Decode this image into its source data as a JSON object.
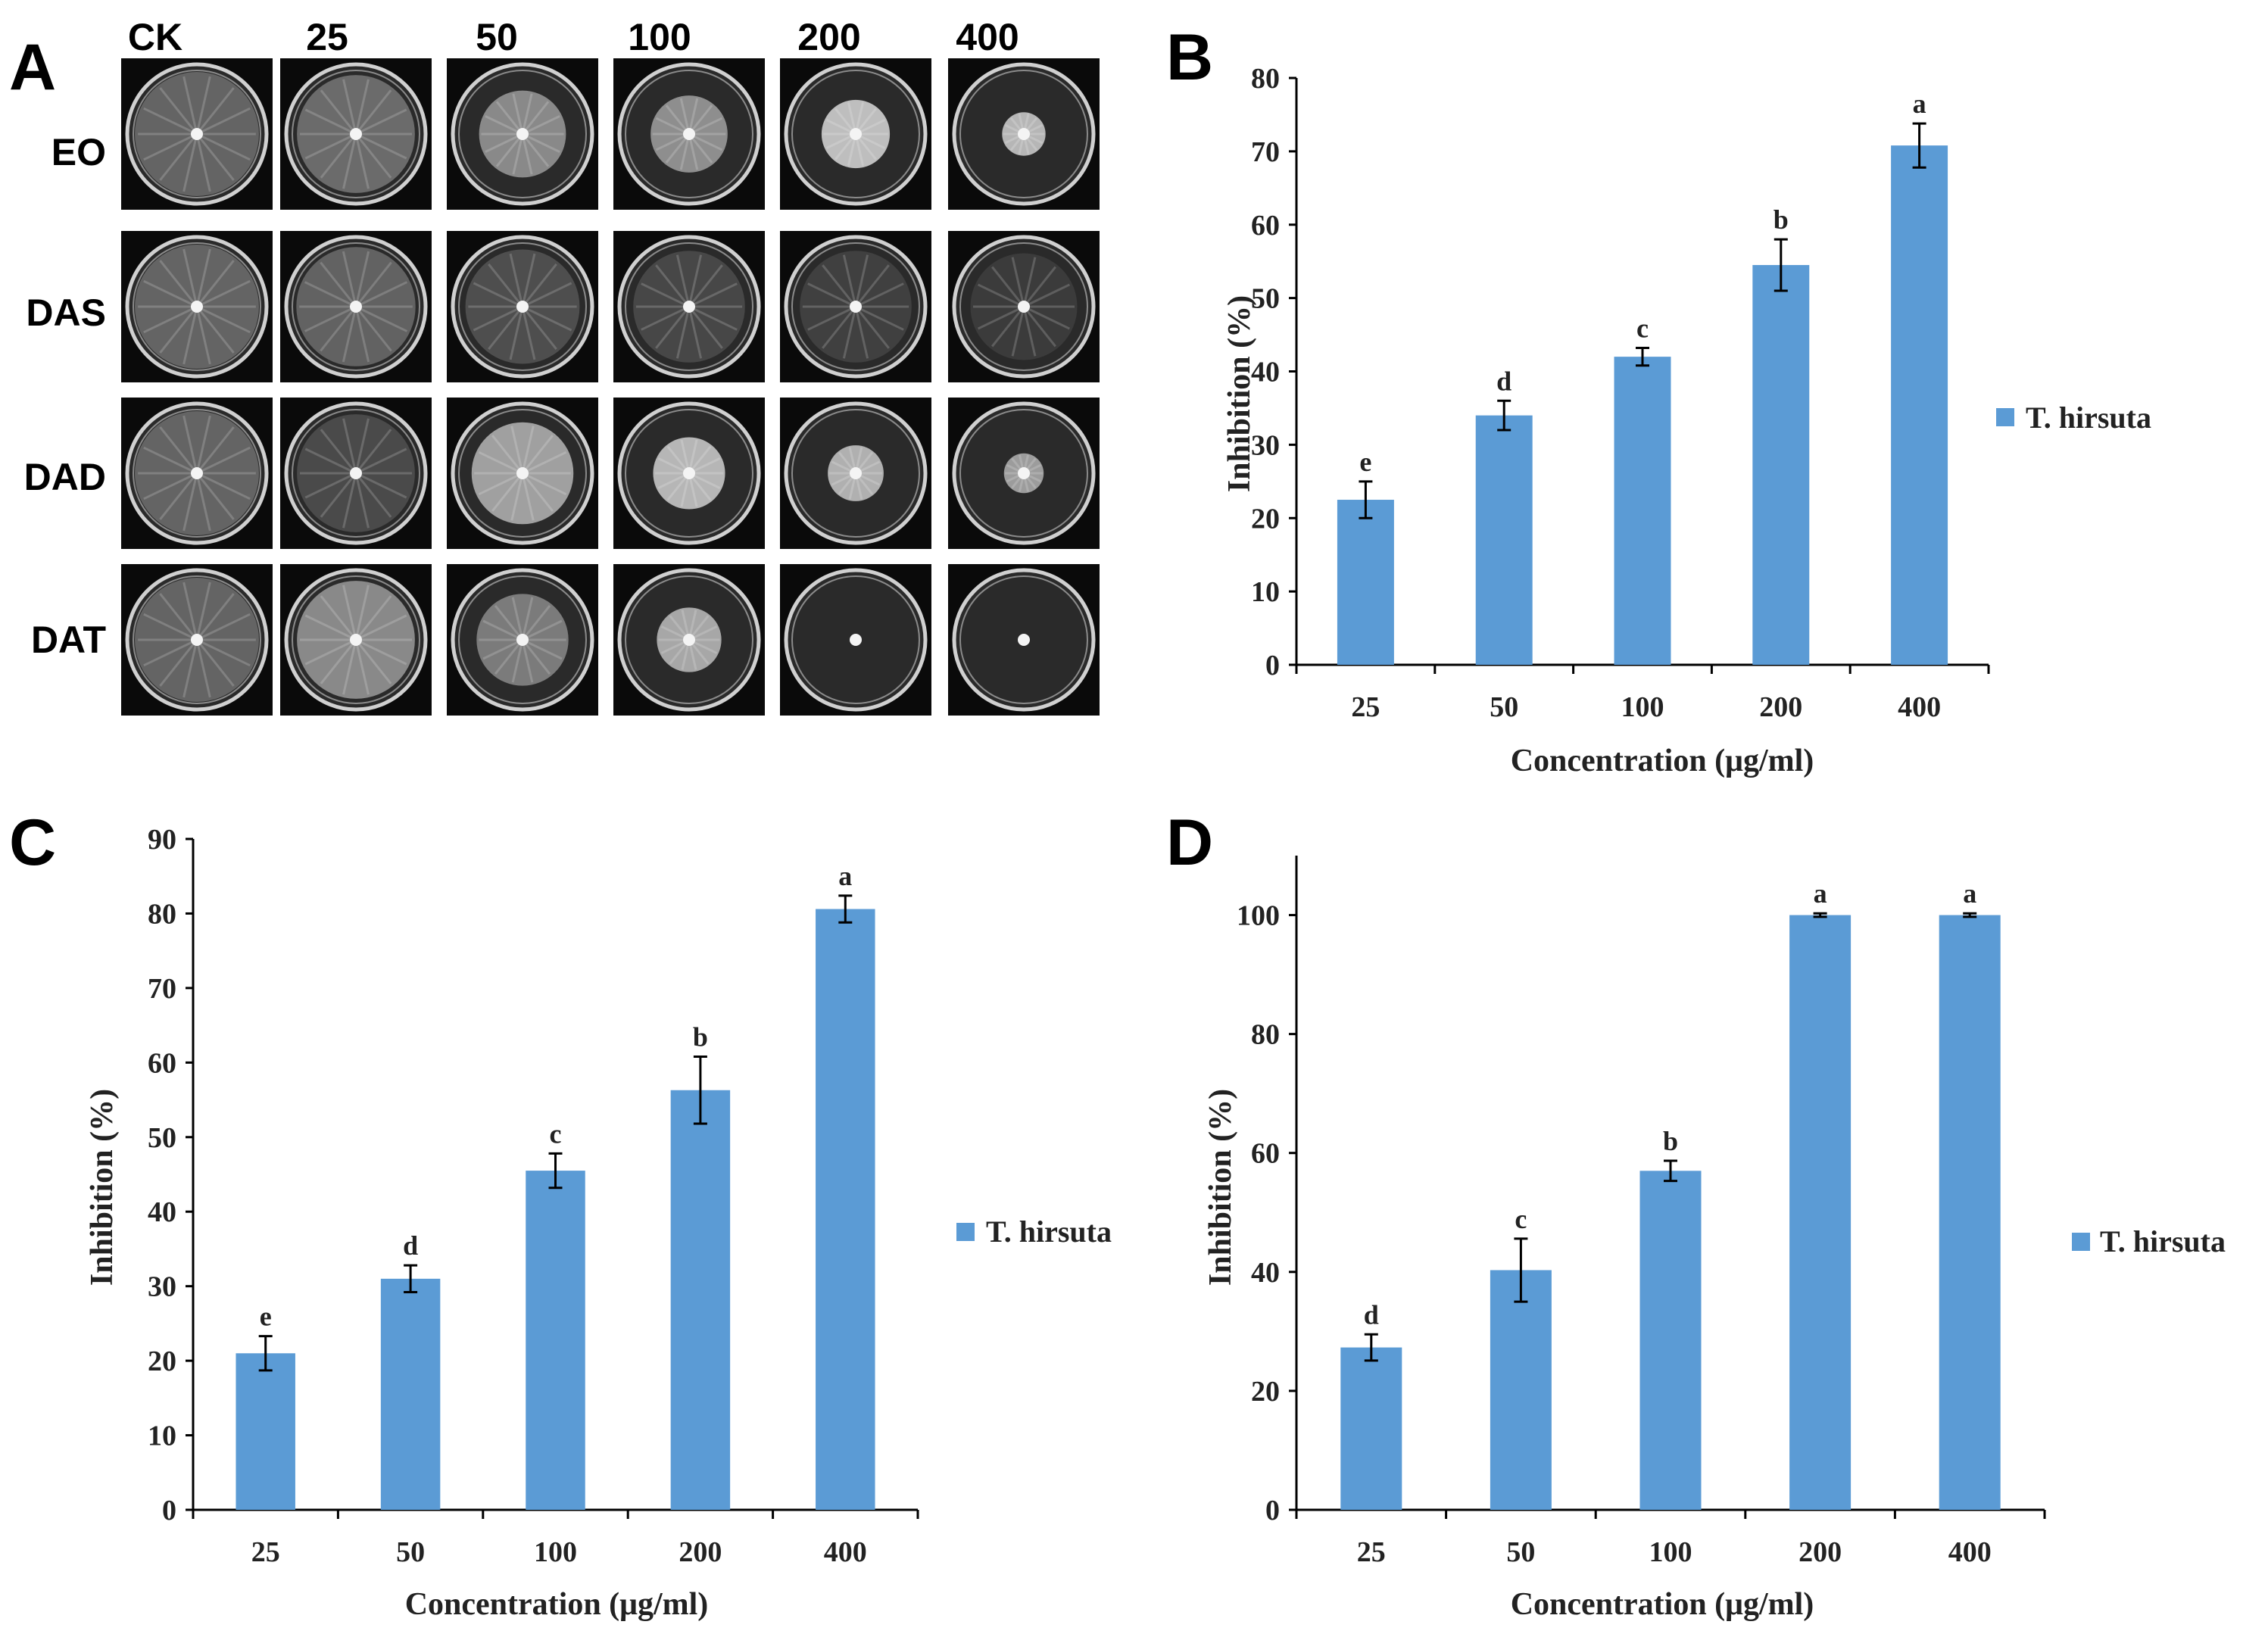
{
  "panel_a": {
    "letter": "A",
    "columns": [
      "CK",
      "25",
      "50",
      "100",
      "200",
      "400"
    ],
    "rows": [
      "EO",
      "DAS",
      "DAD",
      "DAT"
    ]
  },
  "chart_data": [
    {
      "panel": "B",
      "type": "bar",
      "categories": [
        "25",
        "50",
        "100",
        "200",
        "400"
      ],
      "series": [
        {
          "name": "T. hirsuta",
          "values": [
            22.5,
            34.0,
            42.0,
            54.5,
            70.8
          ],
          "errors": [
            2.5,
            2.0,
            1.2,
            3.5,
            3.0
          ]
        }
      ],
      "significance": [
        "e",
        "d",
        "c",
        "b",
        "a"
      ],
      "xlabel": "Concentration (μg/ml)",
      "ylabel": "Inhibition (%)",
      "ylim": [
        0,
        80
      ],
      "yticks": [
        0,
        10,
        20,
        30,
        40,
        50,
        60,
        70,
        80
      ],
      "legend": "right",
      "color": "#5b9bd5"
    },
    {
      "panel": "C",
      "type": "bar",
      "categories": [
        "25",
        "50",
        "100",
        "200",
        "400"
      ],
      "series": [
        {
          "name": "T. hirsuta",
          "values": [
            21.0,
            31.0,
            45.5,
            56.3,
            80.6
          ],
          "errors": [
            2.3,
            1.8,
            2.3,
            4.5,
            1.8
          ]
        }
      ],
      "significance": [
        "e",
        "d",
        "c",
        "b",
        "a"
      ],
      "xlabel": "Concentration (μg/ml)",
      "ylabel": "Inhibition (%)",
      "ylim": [
        0,
        90
      ],
      "yticks": [
        0,
        10,
        20,
        30,
        40,
        50,
        60,
        70,
        80,
        90
      ],
      "legend": "right",
      "color": "#5b9bd5"
    },
    {
      "panel": "D",
      "type": "bar",
      "categories": [
        "25",
        "50",
        "100",
        "200",
        "400"
      ],
      "series": [
        {
          "name": "T. hirsuta",
          "values": [
            27.3,
            40.3,
            57.0,
            100.0,
            100.0
          ],
          "errors": [
            2.2,
            5.3,
            1.7,
            0.3,
            0.3
          ]
        }
      ],
      "significance": [
        "d",
        "c",
        "b",
        "a",
        "a"
      ],
      "xlabel": "Concentration (μg/ml)",
      "ylabel": "Inhibition (%)",
      "ylim": [
        0,
        110
      ],
      "yticks": [
        0,
        20,
        40,
        60,
        80,
        100
      ],
      "legend": "right",
      "color": "#5b9bd5"
    }
  ]
}
